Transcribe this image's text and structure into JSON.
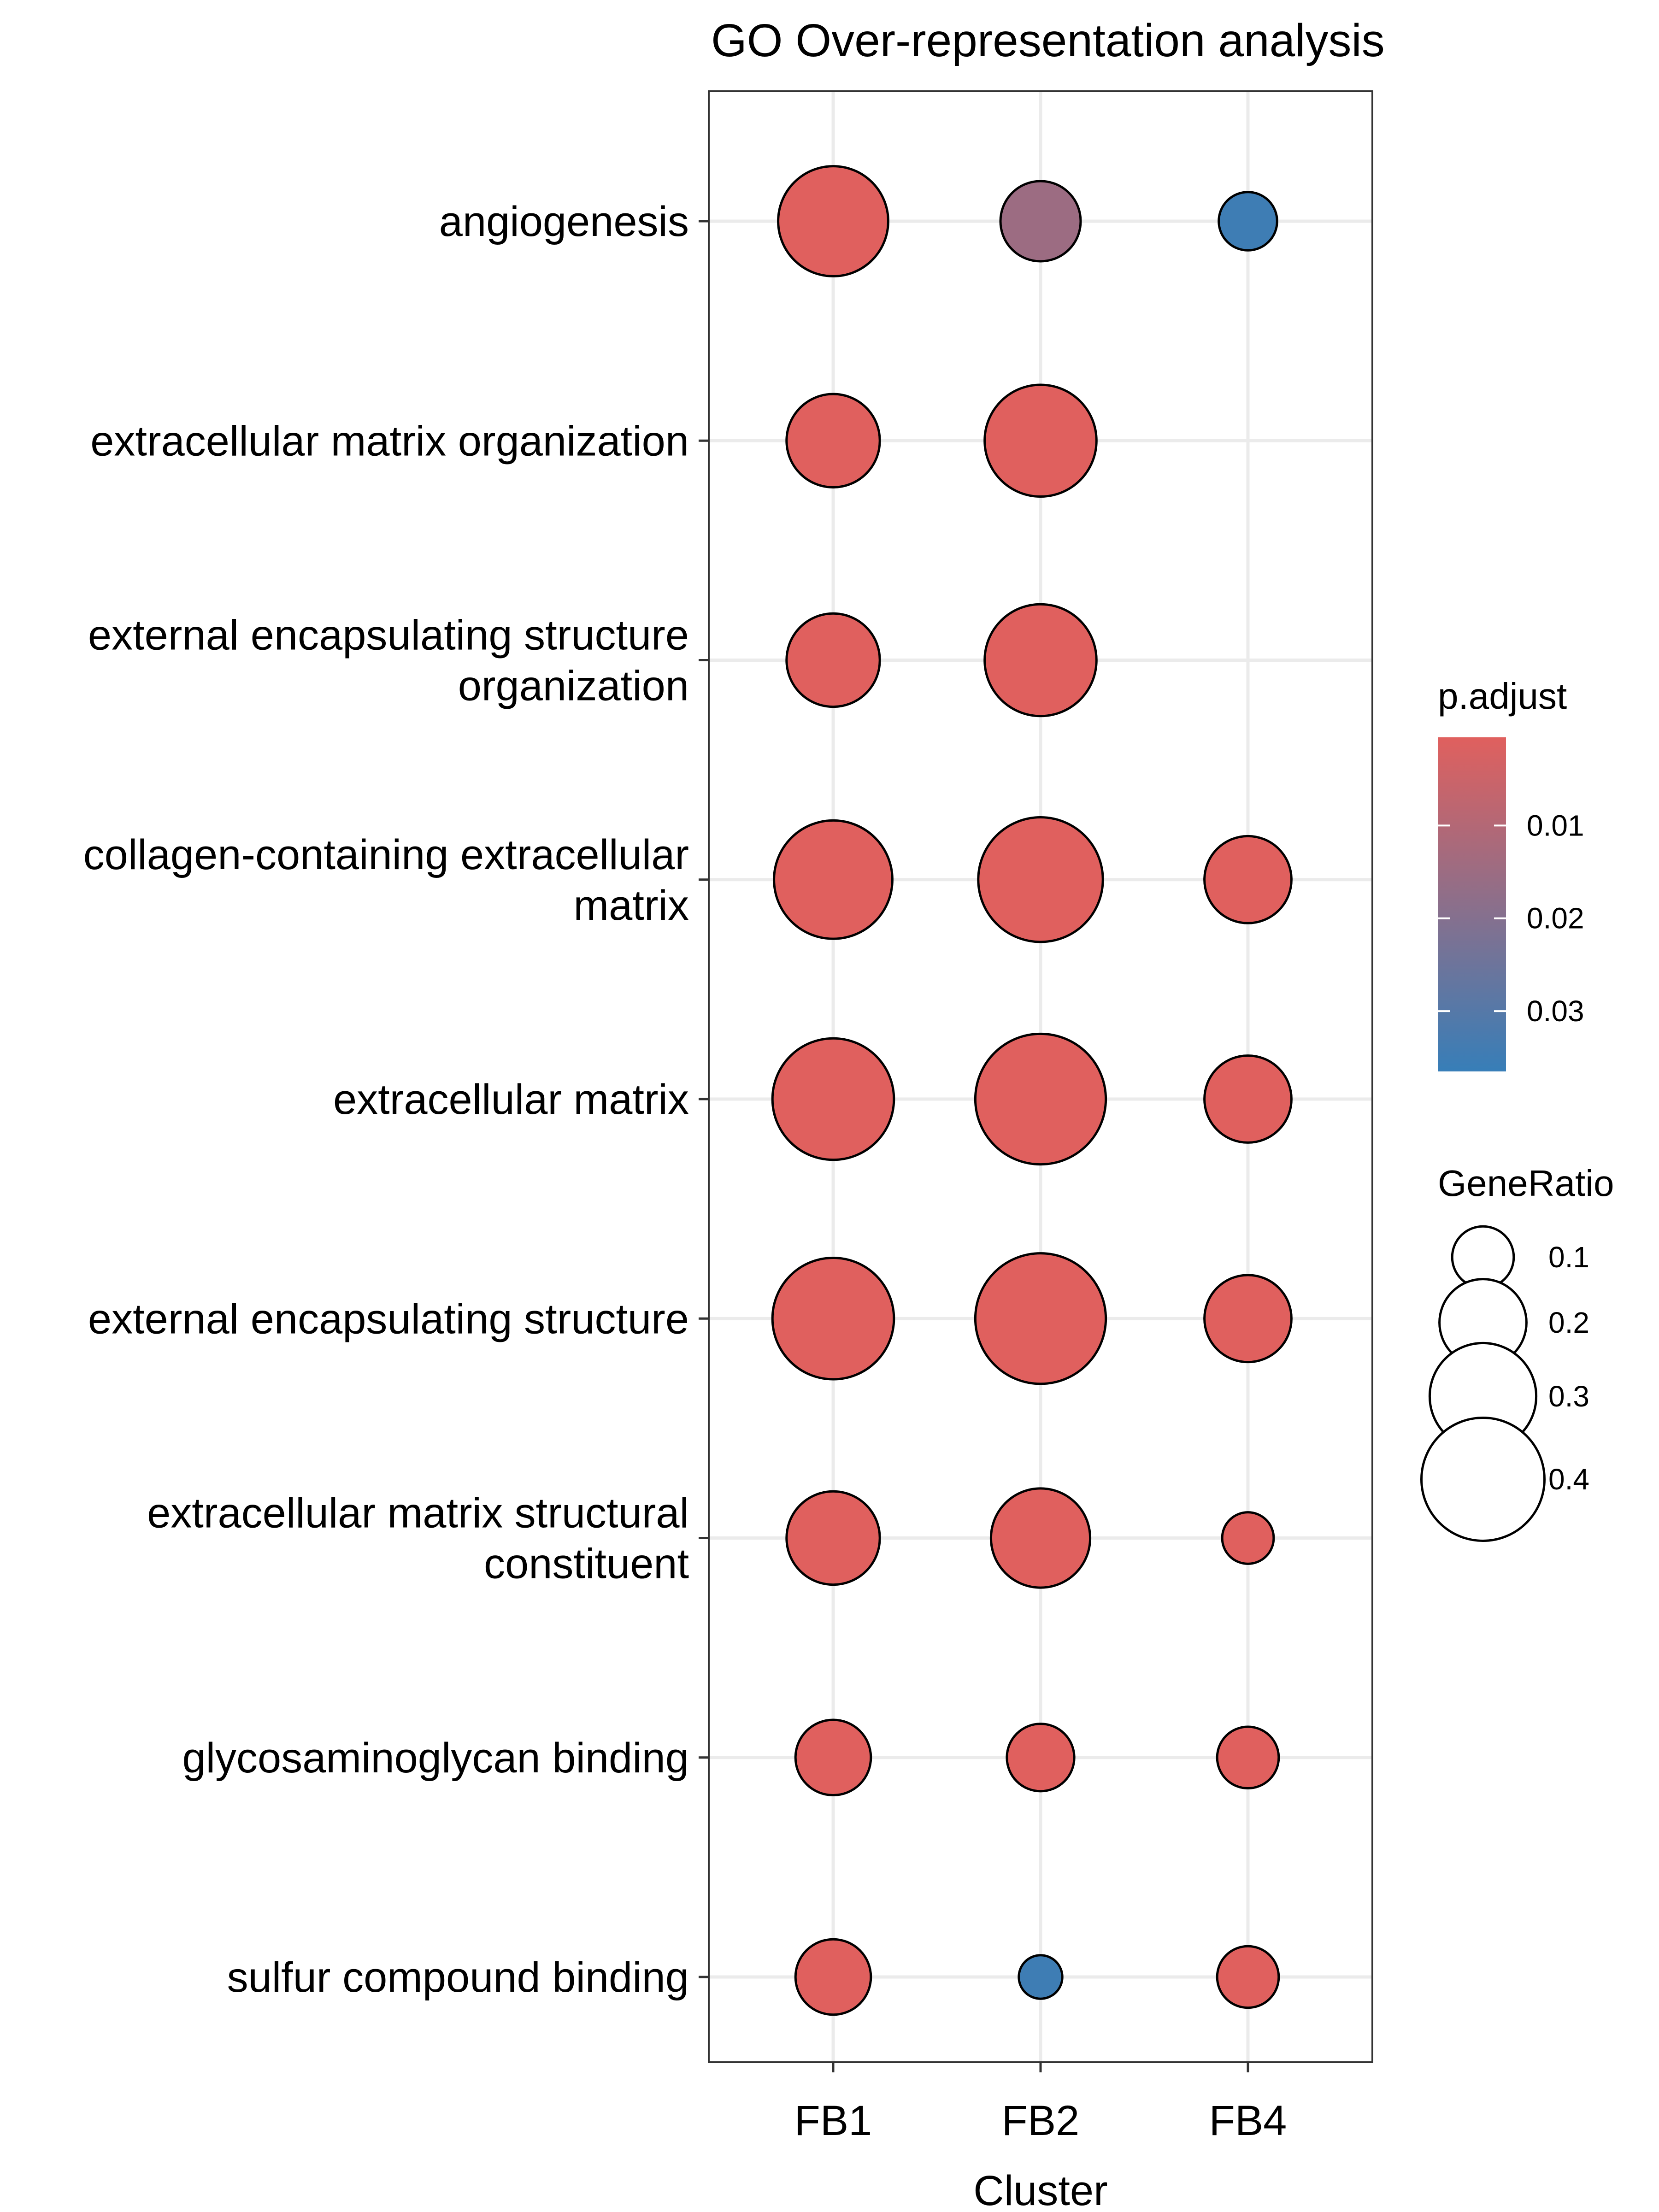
{
  "chart_data": {
    "type": "scatter",
    "title": "GO Over-representation analysis",
    "xlabel": "Cluster",
    "ylabel": "",
    "x_categories": [
      "FB1",
      "FB2",
      "FB4"
    ],
    "y_categories": [
      [
        "angiogenesis"
      ],
      [
        "extracellular matrix organization"
      ],
      [
        "external encapsulating structure",
        "organization"
      ],
      [
        "collagen-containing extracellular",
        "matrix"
      ],
      [
        "extracellular matrix"
      ],
      [
        "external encapsulating structure"
      ],
      [
        "extracellular matrix structural",
        "constituent"
      ],
      [
        "glycosaminoglycan binding"
      ],
      [
        "sulfur compound binding"
      ]
    ],
    "points": [
      {
        "x": "FB1",
        "y": 0,
        "gene_ratio": 0.32,
        "p_adjust": 0.0005
      },
      {
        "x": "FB2",
        "y": 0,
        "gene_ratio": 0.17,
        "p_adjust": 0.015
      },
      {
        "x": "FB4",
        "y": 0,
        "gene_ratio": 0.09,
        "p_adjust": 0.035
      },
      {
        "x": "FB1",
        "y": 1,
        "gene_ratio": 0.23,
        "p_adjust": 0.0005
      },
      {
        "x": "FB2",
        "y": 1,
        "gene_ratio": 0.33,
        "p_adjust": 0.0005
      },
      {
        "x": "FB1",
        "y": 2,
        "gene_ratio": 0.23,
        "p_adjust": 0.0005
      },
      {
        "x": "FB2",
        "y": 2,
        "gene_ratio": 0.33,
        "p_adjust": 0.0005
      },
      {
        "x": "FB1",
        "y": 3,
        "gene_ratio": 0.37,
        "p_adjust": 0.0005
      },
      {
        "x": "FB2",
        "y": 3,
        "gene_ratio": 0.41,
        "p_adjust": 0.0005
      },
      {
        "x": "FB4",
        "y": 3,
        "gene_ratio": 0.2,
        "p_adjust": 0.0005
      },
      {
        "x": "FB1",
        "y": 4,
        "gene_ratio": 0.39,
        "p_adjust": 0.0005
      },
      {
        "x": "FB2",
        "y": 4,
        "gene_ratio": 0.45,
        "p_adjust": 0.0005
      },
      {
        "x": "FB4",
        "y": 4,
        "gene_ratio": 0.2,
        "p_adjust": 0.0005
      },
      {
        "x": "FB1",
        "y": 5,
        "gene_ratio": 0.39,
        "p_adjust": 0.0005
      },
      {
        "x": "FB2",
        "y": 5,
        "gene_ratio": 0.45,
        "p_adjust": 0.0005
      },
      {
        "x": "FB4",
        "y": 5,
        "gene_ratio": 0.2,
        "p_adjust": 0.0005
      },
      {
        "x": "FB1",
        "y": 6,
        "gene_ratio": 0.23,
        "p_adjust": 0.0005
      },
      {
        "x": "FB2",
        "y": 6,
        "gene_ratio": 0.26,
        "p_adjust": 0.0005
      },
      {
        "x": "FB4",
        "y": 6,
        "gene_ratio": 0.07,
        "p_adjust": 0.0005
      },
      {
        "x": "FB1",
        "y": 7,
        "gene_ratio": 0.15,
        "p_adjust": 0.0005
      },
      {
        "x": "FB2",
        "y": 7,
        "gene_ratio": 0.12,
        "p_adjust": 0.0005
      },
      {
        "x": "FB4",
        "y": 7,
        "gene_ratio": 0.1,
        "p_adjust": 0.0005
      },
      {
        "x": "FB1",
        "y": 8,
        "gene_ratio": 0.15,
        "p_adjust": 0.0005
      },
      {
        "x": "FB2",
        "y": 8,
        "gene_ratio": 0.05,
        "p_adjust": 0.035
      },
      {
        "x": "FB4",
        "y": 8,
        "gene_ratio": 0.1,
        "p_adjust": 0.0005
      }
    ],
    "color_legend": {
      "title": "p.adjust",
      "ticks": [
        {
          "value": 0.01,
          "label": "0.01"
        },
        {
          "value": 0.02,
          "label": "0.02"
        },
        {
          "value": 0.03,
          "label": "0.03"
        }
      ],
      "range": [
        0.0005,
        0.0365
      ],
      "low_color": "#e0605e",
      "high_color": "#377eb8"
    },
    "size_legend": {
      "title": "GeneRatio",
      "ticks": [
        {
          "value": 0.1,
          "label": "0.1"
        },
        {
          "value": 0.2,
          "label": "0.2"
        },
        {
          "value": 0.3,
          "label": "0.3"
        },
        {
          "value": 0.4,
          "label": "0.4"
        }
      ]
    },
    "grid": true,
    "legend_position": "right"
  }
}
